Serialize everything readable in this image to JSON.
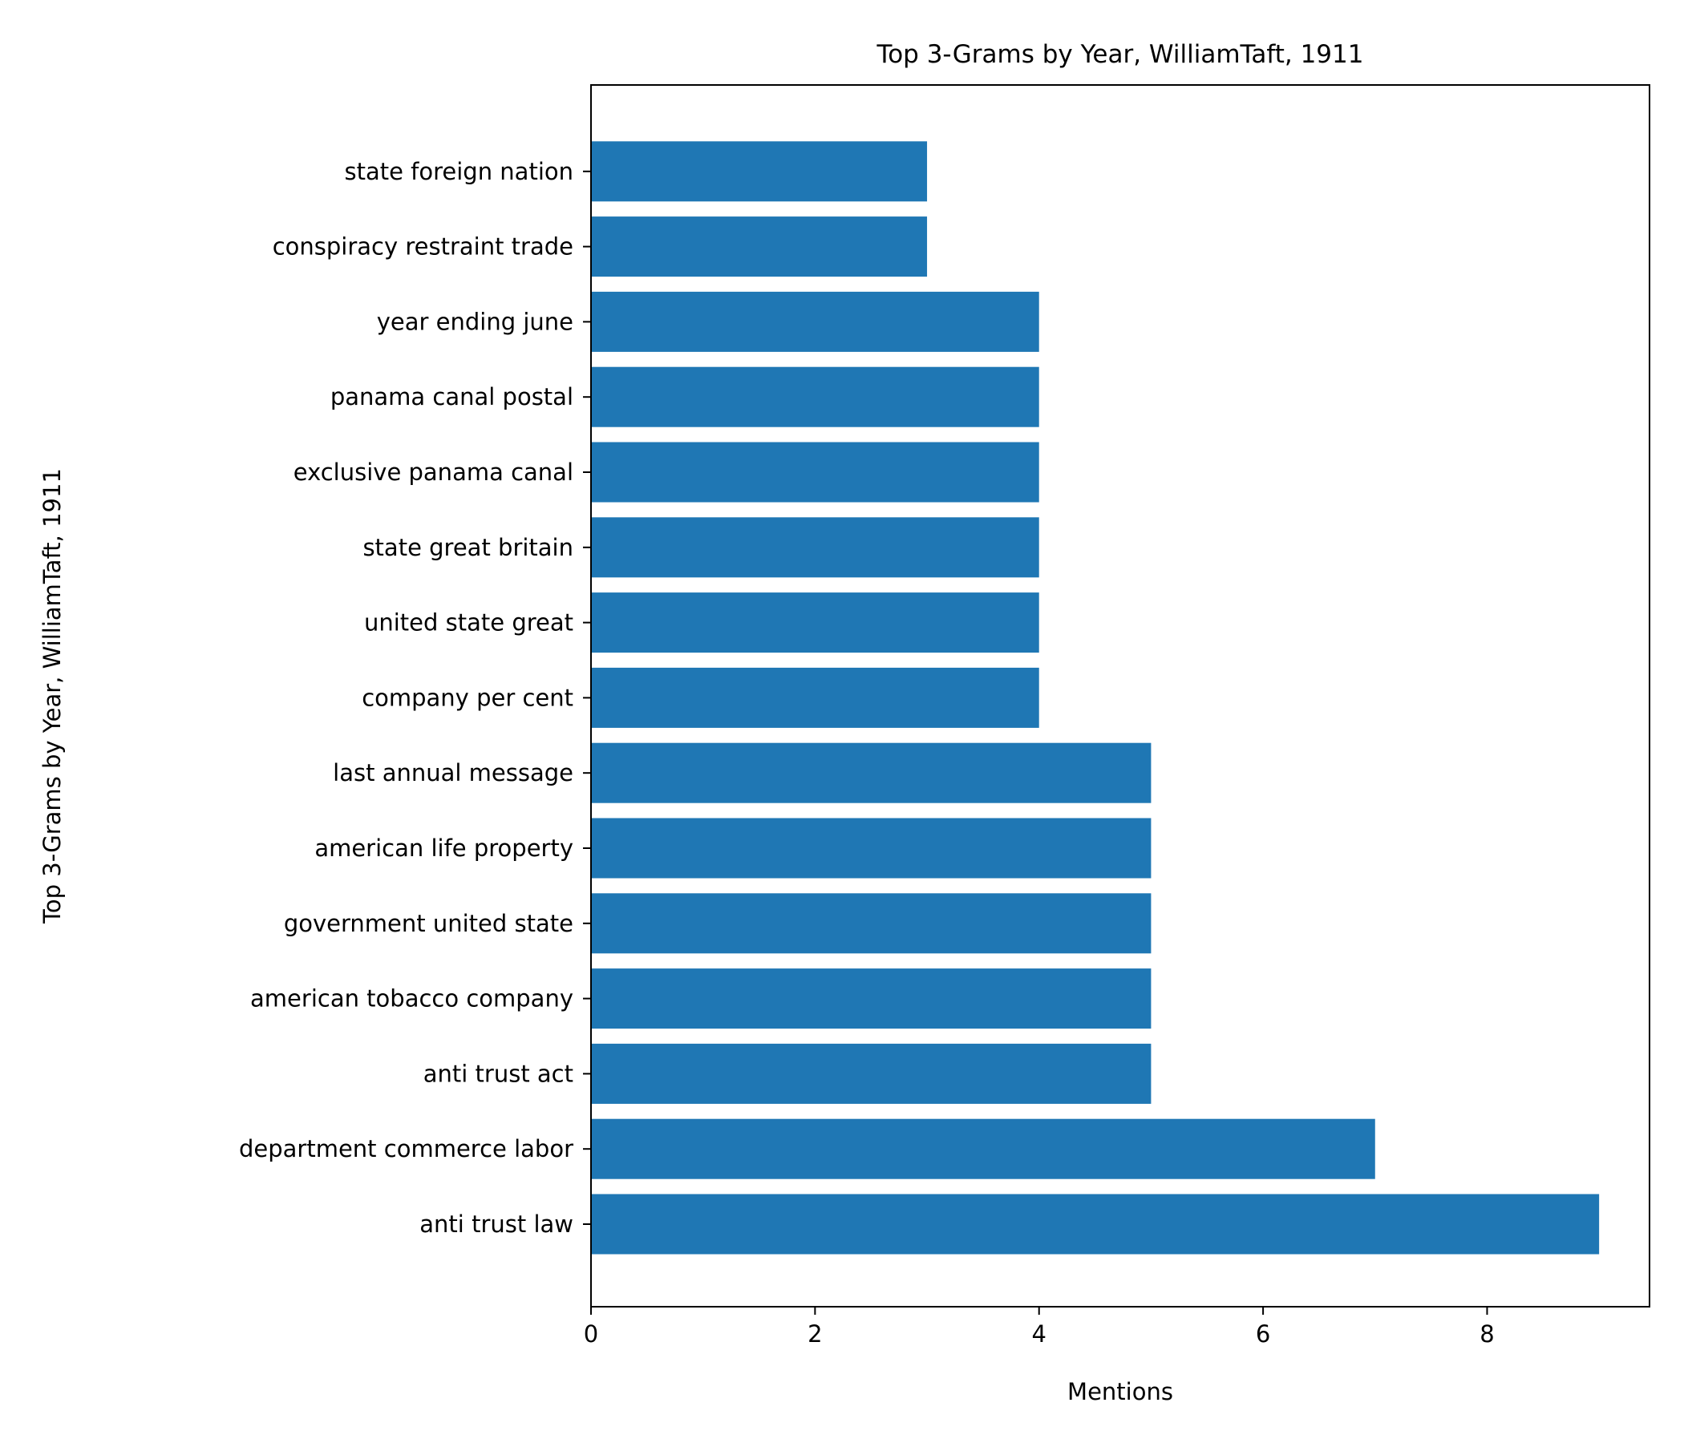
{
  "chart_data": {
    "type": "bar",
    "orientation": "horizontal",
    "title": "Top 3-Grams by Year, WilliamTaft, 1911",
    "xlabel": "Mentions",
    "ylabel": "Top 3-Grams by Year, WilliamTaft, 1911",
    "categories": [
      "anti trust law",
      "department commerce labor",
      "anti trust act",
      "american tobacco company",
      "government united state",
      "american life property",
      "last annual message",
      "company per cent",
      "united state great",
      "state great britain",
      "exclusive panama canal",
      "panama canal postal",
      "year ending june",
      "conspiracy restraint trade",
      "state foreign nation"
    ],
    "values": [
      9,
      7,
      5,
      5,
      5,
      5,
      5,
      4,
      4,
      4,
      4,
      4,
      4,
      3,
      3
    ],
    "xlim": [
      0,
      9.45
    ],
    "xticks": [
      0,
      2,
      4,
      6,
      8
    ],
    "bar_color": "#1f77b4",
    "grid": false,
    "legend": "none"
  }
}
